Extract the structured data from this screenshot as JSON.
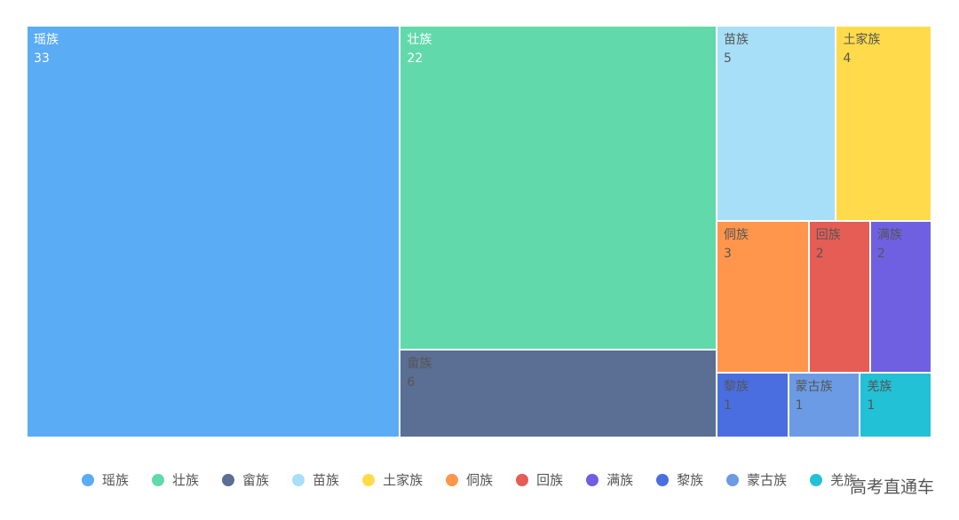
{
  "chart_data": {
    "type": "treemap",
    "title": "",
    "categories": [
      "瑶族",
      "壮族",
      "畲族",
      "苗族",
      "土家族",
      "侗族",
      "回族",
      "满族",
      "黎族",
      "蒙古族",
      "羌族"
    ],
    "values": [
      33,
      22,
      6,
      5,
      4,
      3,
      2,
      2,
      1,
      1,
      1
    ],
    "colors": [
      "#5aacf5",
      "#62d9ab",
      "#5b6e93",
      "#a7dff8",
      "#ffdb4b",
      "#ff964c",
      "#e55d55",
      "#6e60e1",
      "#4a6ee0",
      "#6b9be5",
      "#22c1d6"
    ],
    "legend_position": "bottom",
    "legend": [
      "瑶族",
      "壮族",
      "畲族",
      "苗族",
      "土家族",
      "侗族",
      "回族",
      "满族",
      "黎族",
      "蒙古族",
      "羌族"
    ]
  },
  "watermark": "高考直通车"
}
